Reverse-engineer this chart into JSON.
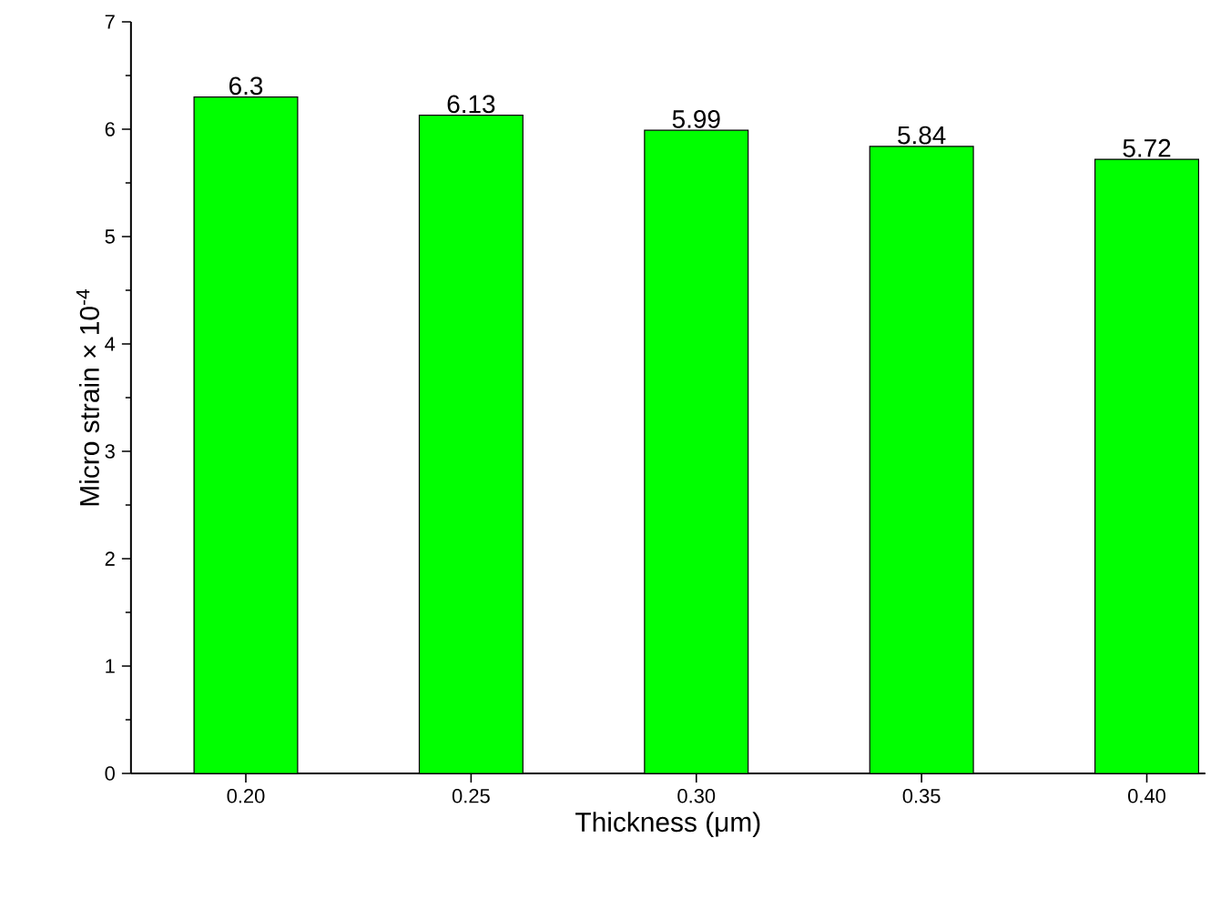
{
  "chart_data": {
    "type": "bar",
    "xlabel": "Thickness (μm)",
    "ylabel": "Micro strain × 10$^{-4}$",
    "categories": [
      "0.20",
      "0.25",
      "0.30",
      "0.35",
      "0.40"
    ],
    "values": [
      6.3,
      6.13,
      5.99,
      5.84,
      5.72
    ],
    "color": "#00ff00",
    "ylim": [
      0,
      7
    ],
    "yticks": [
      0,
      1,
      2,
      3,
      4,
      5,
      6,
      7
    ],
    "data_labels": true
  }
}
